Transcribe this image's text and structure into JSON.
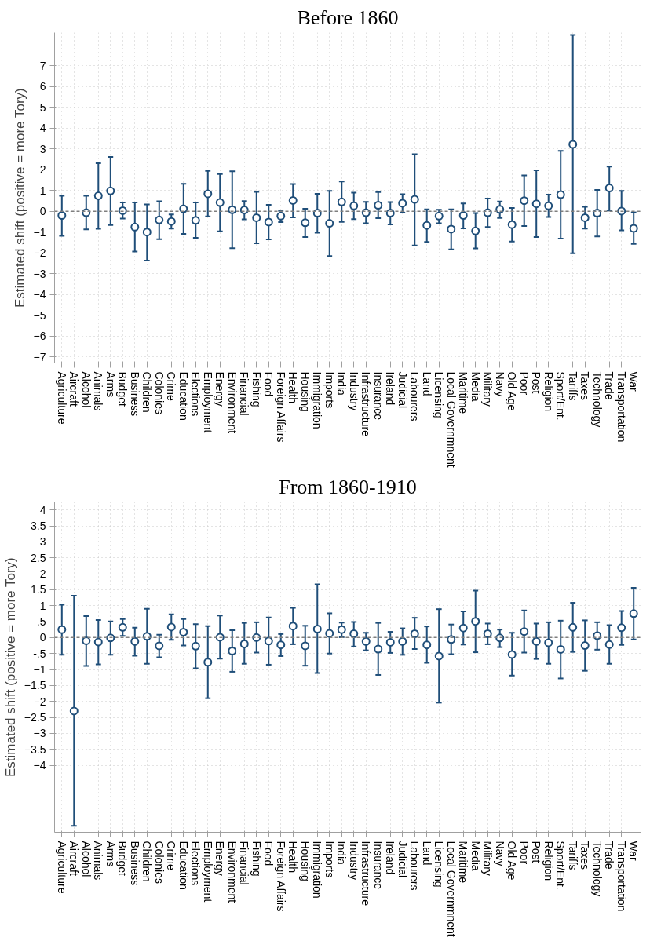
{
  "chart_data": [
    {
      "type": "scatter",
      "title": "Before 1860",
      "ylabel": "Estimated shift (positive = more Tory)",
      "marker": "circle",
      "grid": true,
      "color": "#1f4e79",
      "categories": [
        "Agriculture",
        "Aircraft",
        "Alcohol",
        "Animals",
        "Arms",
        "Budget",
        "Business",
        "Children",
        "Colonies",
        "Crime",
        "Education",
        "Elections",
        "Employment",
        "Energy",
        "Environment",
        "Financial",
        "Fishing",
        "Food",
        "Foreign Affairs",
        "Health",
        "Housing",
        "Immigration",
        "Imports",
        "India",
        "Industry",
        "Infrastructure",
        "Insurance",
        "Ireland",
        "Judicial",
        "Labourers",
        "Land",
        "Licensing",
        "Local Governmnent",
        "Maritime",
        "Media",
        "Military",
        "Navy",
        "Old Age",
        "Poor",
        "Post",
        "Religion",
        "Sport/Ent.",
        "Tariffs",
        "Taxes",
        "Technology",
        "Trade",
        "Transportation",
        "War"
      ],
      "values": [
        -0.2,
        null,
        -0.07,
        0.74,
        0.98,
        0.03,
        -0.76,
        -1.0,
        -0.42,
        -0.49,
        0.12,
        -0.44,
        0.84,
        0.42,
        0.07,
        0.06,
        -0.31,
        -0.52,
        -0.23,
        0.52,
        -0.55,
        -0.09,
        -0.58,
        0.45,
        0.26,
        -0.07,
        0.29,
        -0.09,
        0.39,
        0.57,
        -0.68,
        -0.23,
        -0.86,
        -0.2,
        -0.95,
        -0.07,
        0.09,
        -0.64,
        0.51,
        0.36,
        0.26,
        0.8,
        3.22,
        -0.31,
        -0.09,
        1.12,
        0.01,
        -0.82
      ],
      "errors": [
        [
          -1.18,
          0.74
        ],
        null,
        [
          -0.87,
          0.74
        ],
        [
          -0.84,
          2.31
        ],
        [
          -0.66,
          2.61
        ],
        [
          -0.35,
          0.42
        ],
        [
          -1.94,
          0.42
        ],
        [
          -2.37,
          0.33
        ],
        [
          -1.34,
          0.48
        ],
        [
          -0.83,
          -0.15
        ],
        [
          -1.09,
          1.32
        ],
        [
          -1.28,
          0.42
        ],
        [
          -0.25,
          1.94
        ],
        [
          -0.96,
          1.79
        ],
        [
          -1.78,
          1.92
        ],
        [
          -0.39,
          0.49
        ],
        [
          -1.54,
          0.93
        ],
        [
          -1.35,
          0.31
        ],
        [
          -0.52,
          0.03
        ],
        [
          -0.29,
          1.31
        ],
        [
          -1.24,
          0.12
        ],
        [
          -1.03,
          0.84
        ],
        [
          -2.15,
          0.98
        ],
        [
          -0.51,
          1.43
        ],
        [
          -0.38,
          0.9
        ],
        [
          -0.58,
          0.45
        ],
        [
          -0.33,
          0.92
        ],
        [
          -0.63,
          0.44
        ],
        [
          -0.07,
          0.82
        ],
        [
          -1.64,
          2.75
        ],
        [
          -1.47,
          0.09
        ],
        [
          -0.58,
          0.07
        ],
        [
          -1.83,
          0.09
        ],
        [
          -0.82,
          0.38
        ],
        [
          -1.79,
          -0.09
        ],
        [
          -0.76,
          0.61
        ],
        [
          -0.32,
          0.47
        ],
        [
          -1.46,
          0.16
        ],
        [
          -0.71,
          1.73
        ],
        [
          -1.24,
          1.97
        ],
        [
          -0.28,
          0.8
        ],
        [
          -1.31,
          2.91
        ],
        [
          -2.02,
          8.49
        ],
        [
          -0.83,
          0.22
        ],
        [
          -1.21,
          1.03
        ],
        [
          0.04,
          2.15
        ],
        [
          -0.92,
          0.98
        ],
        [
          -1.57,
          -0.06
        ]
      ],
      "ylim": [
        -7.3,
        8.6
      ],
      "yticks": [
        -7,
        -6,
        -5,
        -4,
        -3,
        -2,
        -1,
        0,
        1,
        2,
        3,
        4,
        5,
        6,
        7
      ],
      "ref_lines": [
        {
          "axis": "y",
          "value": 0,
          "color": "#7f7f7f",
          "line_style": "dashed"
        }
      ]
    },
    {
      "type": "scatter",
      "title": "From 1860-1910",
      "ylabel": "Estimated shift (positive = more Tory)",
      "marker": "circle",
      "grid": true,
      "color": "#1f4e79",
      "categories": [
        "Agriculture",
        "Aircraft",
        "Alcohol",
        "Animals",
        "Arms",
        "Budget",
        "Business",
        "Children",
        "Colonies",
        "Crime",
        "Education",
        "Elections",
        "Employment",
        "Energy",
        "Environment",
        "Financial",
        "Fishing",
        "Food",
        "Foreign Affairs",
        "Health",
        "Housing",
        "Immigration",
        "Imports",
        "India",
        "Industry",
        "Infrastructure",
        "Insurance",
        "Ireland",
        "Judicial",
        "Labourers",
        "Land",
        "Licensing",
        "Local Governmnent",
        "Maritime",
        "Media",
        "Military",
        "Navy",
        "Old Age",
        "Poor",
        "Post",
        "Religion",
        "Sport/Ent.",
        "Tariffs",
        "Taxes",
        "Technology",
        "Trade",
        "Transportation",
        "War"
      ],
      "values": [
        0.25,
        -2.3,
        -0.1,
        -0.14,
        -0.01,
        0.32,
        -0.12,
        0.04,
        -0.26,
        0.33,
        0.17,
        -0.27,
        -0.77,
        0.01,
        -0.42,
        -0.2,
        0.0,
        -0.11,
        -0.23,
        0.36,
        -0.26,
        0.27,
        0.13,
        0.25,
        0.12,
        -0.12,
        -0.36,
        -0.15,
        -0.12,
        0.12,
        -0.23,
        -0.58,
        -0.06,
        0.3,
        0.51,
        0.12,
        -0.01,
        -0.53,
        0.19,
        -0.12,
        -0.16,
        -0.37,
        0.32,
        -0.25,
        0.06,
        -0.22,
        0.31,
        0.75
      ],
      "errors": [
        [
          -0.54,
          1.03
        ],
        [
          -5.9,
          1.31
        ],
        [
          -0.89,
          0.67
        ],
        [
          -0.84,
          0.55
        ],
        [
          -0.54,
          0.51
        ],
        [
          0.05,
          0.58
        ],
        [
          -0.57,
          0.31
        ],
        [
          -0.82,
          0.9
        ],
        [
          -0.62,
          0.09
        ],
        [
          -0.07,
          0.73
        ],
        [
          -0.25,
          0.58
        ],
        [
          -0.96,
          0.42
        ],
        [
          -1.9,
          0.36
        ],
        [
          -0.66,
          0.69
        ],
        [
          -1.07,
          0.23
        ],
        [
          -0.82,
          0.46
        ],
        [
          -0.47,
          0.48
        ],
        [
          -0.85,
          0.63
        ],
        [
          -0.58,
          0.11
        ],
        [
          -0.21,
          0.93
        ],
        [
          -0.88,
          0.37
        ],
        [
          -1.11,
          1.67
        ],
        [
          -0.5,
          0.76
        ],
        [
          0.01,
          0.47
        ],
        [
          -0.28,
          0.49
        ],
        [
          -0.4,
          0.15
        ],
        [
          -1.17,
          0.46
        ],
        [
          -0.48,
          0.18
        ],
        [
          -0.54,
          0.29
        ],
        [
          -0.36,
          0.62
        ],
        [
          -0.79,
          0.35
        ],
        [
          -2.04,
          0.89
        ],
        [
          -0.52,
          0.41
        ],
        [
          -0.22,
          0.82
        ],
        [
          -0.46,
          1.47
        ],
        [
          -0.21,
          0.44
        ],
        [
          -0.3,
          0.25
        ],
        [
          -1.19,
          0.15
        ],
        [
          -0.47,
          0.85
        ],
        [
          -0.67,
          0.44
        ],
        [
          -0.82,
          0.48
        ],
        [
          -1.28,
          0.53
        ],
        [
          -0.45,
          1.09
        ],
        [
          -1.04,
          0.54
        ],
        [
          -0.38,
          0.48
        ],
        [
          -0.82,
          0.39
        ],
        [
          -0.23,
          0.83
        ],
        [
          -0.06,
          1.56
        ]
      ],
      "ylim": [
        -6.1,
        4.25
      ],
      "yticks": [
        -4,
        -3.5,
        -3,
        -2.5,
        -2,
        -1.5,
        -1,
        {
          "value": -0.5,
          "label": "-.5"
        },
        0,
        {
          "value": 0.5,
          "label": ".5"
        },
        1,
        1.5,
        2,
        2.5,
        3,
        3.5,
        4
      ],
      "ref_lines": [
        {
          "axis": "y",
          "value": 0,
          "color": "#7f7f7f",
          "line_style": "dashed"
        }
      ]
    }
  ]
}
